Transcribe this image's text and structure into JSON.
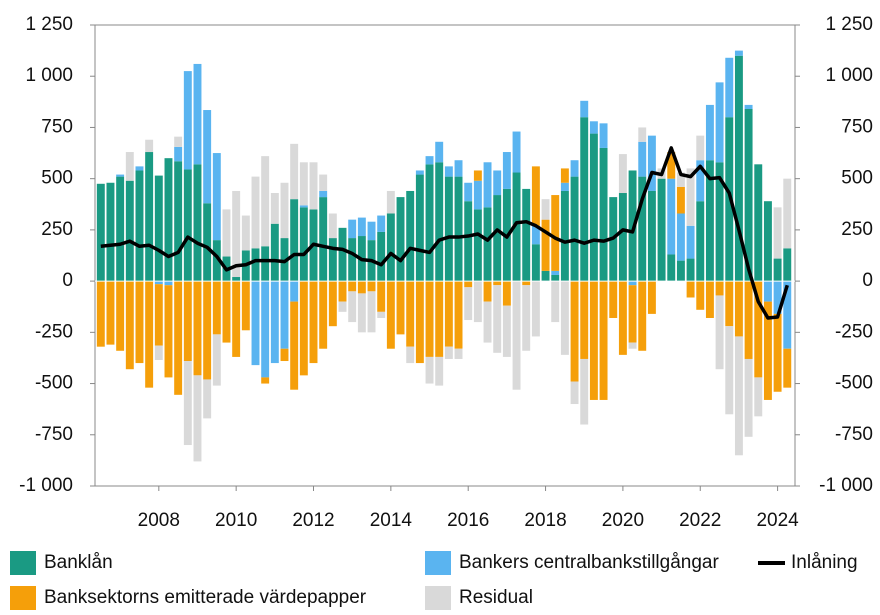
{
  "chart_data": {
    "type": "bar",
    "x": [
      2006.5,
      2006.75,
      2007,
      2007.25,
      2007.5,
      2007.75,
      2008,
      2008.25,
      2008.5,
      2008.75,
      2009,
      2009.25,
      2009.5,
      2009.75,
      2010,
      2010.25,
      2010.5,
      2010.75,
      2011,
      2011.25,
      2011.5,
      2011.75,
      2012,
      2012.25,
      2012.5,
      2012.75,
      2013,
      2013.25,
      2013.5,
      2013.75,
      2014,
      2014.25,
      2014.5,
      2014.75,
      2015,
      2015.25,
      2015.5,
      2015.75,
      2016,
      2016.25,
      2016.5,
      2016.75,
      2017,
      2017.25,
      2017.5,
      2017.75,
      2018,
      2018.25,
      2018.5,
      2018.75,
      2019,
      2019.25,
      2019.5,
      2019.75,
      2020,
      2020.25,
      2020.5,
      2020.75,
      2021,
      2021.25,
      2021.5,
      2021.75,
      2022,
      2022.25,
      2022.5,
      2022.75,
      2023,
      2023.25,
      2023.5,
      2023.75,
      2024,
      2024.25
    ],
    "xlim": [
      2006.35,
      2024.45
    ],
    "xticks": [
      2008,
      2010,
      2012,
      2014,
      2016,
      2018,
      2020,
      2022,
      2024
    ],
    "ylim": [
      -1000,
      1250
    ],
    "yticks": [
      {
        "value": -1000,
        "label": "-1 000"
      },
      -750,
      -500,
      -250,
      0,
      250,
      500,
      750,
      {
        "value": 1000,
        "label": "1 000"
      },
      {
        "value": 1250,
        "label": "1 250"
      }
    ],
    "series": [
      {
        "name": "Banklån",
        "color": "#1a9a83",
        "values": [
          475,
          480,
          510,
          490,
          540,
          630,
          515,
          600,
          585,
          545,
          570,
          380,
          200,
          120,
          20,
          150,
          160,
          170,
          280,
          210,
          400,
          360,
          350,
          410,
          210,
          260,
          210,
          220,
          200,
          240,
          330,
          410,
          440,
          520,
          570,
          580,
          510,
          510,
          390,
          350,
          360,
          420,
          450,
          530,
          450,
          180,
          50,
          30,
          440,
          510,
          800,
          720,
          650,
          410,
          430,
          540,
          510,
          440,
          500,
          130,
          100,
          110,
          390,
          590,
          580,
          800,
          1100,
          840,
          570,
          390,
          110,
          160
        ]
      },
      {
        "name": "Bankers centralbankstillgångar",
        "color": "#5ab4f0",
        "values": [
          0,
          0,
          10,
          0,
          20,
          0,
          -15,
          -20,
          70,
          480,
          490,
          455,
          425,
          0,
          0,
          0,
          -410,
          -470,
          -400,
          -330,
          -100,
          10,
          0,
          30,
          0,
          0,
          90,
          90,
          90,
          80,
          0,
          0,
          0,
          20,
          40,
          100,
          50,
          80,
          90,
          140,
          220,
          120,
          180,
          200,
          0,
          90,
          0,
          20,
          40,
          80,
          80,
          60,
          120,
          0,
          0,
          -20,
          170,
          270,
          0,
          370,
          230,
          160,
          200,
          270,
          390,
          290,
          25,
          20,
          0,
          -100,
          -160,
          -330
        ]
      },
      {
        "name": "Banksektorns emitterade värdepapper",
        "color": "#f59f0a",
        "values": [
          -320,
          -310,
          -340,
          -430,
          -400,
          -520,
          -300,
          -450,
          -555,
          -390,
          -460,
          -480,
          -260,
          -300,
          -370,
          -240,
          0,
          -30,
          0,
          -60,
          -430,
          -460,
          -400,
          -330,
          -220,
          -100,
          -50,
          -60,
          -50,
          -150,
          -330,
          -260,
          -320,
          -400,
          -370,
          -370,
          -320,
          -330,
          -30,
          50,
          -100,
          -20,
          -120,
          0,
          -20,
          290,
          250,
          370,
          70,
          -490,
          -380,
          -580,
          -580,
          -180,
          -360,
          -280,
          -340,
          -160,
          0,
          130,
          130,
          -80,
          -140,
          -180,
          -70,
          -220,
          -270,
          -380,
          -470,
          -480,
          -380,
          -190
        ]
      },
      {
        "name": "Residual",
        "color": "#d9d9d9",
        "values": [
          0,
          0,
          0,
          140,
          0,
          60,
          -70,
          0,
          50,
          -410,
          -420,
          -190,
          -250,
          230,
          420,
          170,
          350,
          440,
          150,
          270,
          270,
          210,
          230,
          80,
          120,
          -50,
          -150,
          -190,
          -200,
          -30,
          110,
          0,
          -80,
          0,
          -130,
          -140,
          -60,
          -50,
          -160,
          -200,
          -200,
          -330,
          -250,
          -530,
          -320,
          -270,
          100,
          -200,
          -360,
          -110,
          -320,
          0,
          0,
          0,
          190,
          -30,
          70,
          0,
          50,
          0,
          70,
          280,
          120,
          0,
          -360,
          -430,
          -580,
          -380,
          -190,
          0,
          250,
          340
        ]
      }
    ],
    "line": {
      "name": "Inlåning",
      "color": "#000000",
      "values": [
        170,
        175,
        180,
        195,
        170,
        175,
        150,
        120,
        140,
        215,
        185,
        165,
        120,
        55,
        75,
        80,
        100,
        100,
        100,
        95,
        130,
        130,
        180,
        170,
        160,
        155,
        135,
        105,
        100,
        80,
        135,
        100,
        160,
        150,
        140,
        200,
        215,
        215,
        220,
        230,
        200,
        250,
        215,
        285,
        290,
        270,
        240,
        210,
        190,
        200,
        185,
        200,
        195,
        210,
        250,
        240,
        400,
        530,
        520,
        650,
        520,
        510,
        560,
        500,
        505,
        430,
        250,
        60,
        -100,
        -180,
        -175,
        -20
      ]
    }
  }
}
